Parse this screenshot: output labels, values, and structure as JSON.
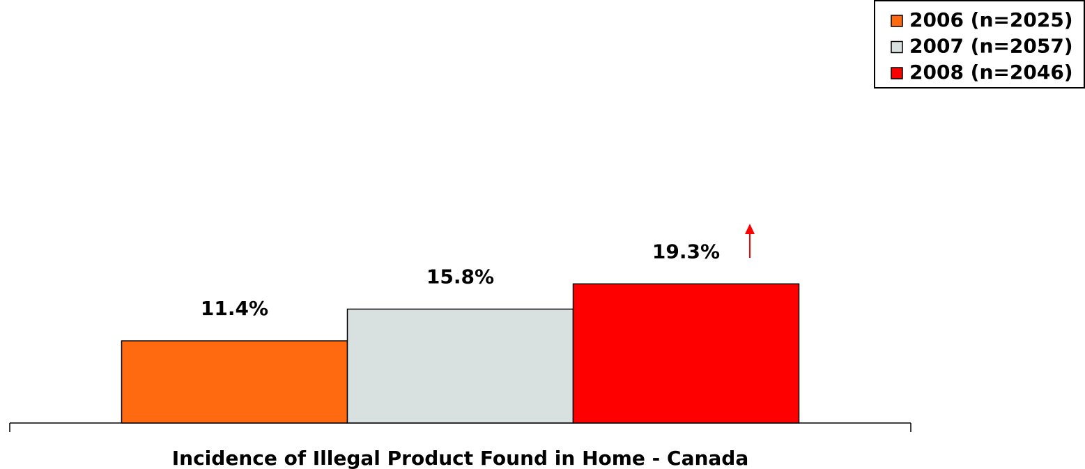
{
  "chart_data": {
    "type": "bar",
    "categories": [
      "Incidence of Illegal Product Found in Home - Canada"
    ],
    "series": [
      {
        "name": "2006 (n=2025)",
        "color": "#ff6a10",
        "values": [
          11.4
        ],
        "value_labels": [
          "11.4%"
        ]
      },
      {
        "name": "2007 (n=2057)",
        "color": "#d9e0e0",
        "values": [
          15.8
        ],
        "value_labels": [
          "15.8%"
        ]
      },
      {
        "name": "2008 (n=2046)",
        "color": "#ff0000",
        "values": [
          19.3
        ],
        "value_labels": [
          "19.3%"
        ]
      }
    ],
    "ylim": [
      0,
      58
    ],
    "legend": "top-right"
  }
}
